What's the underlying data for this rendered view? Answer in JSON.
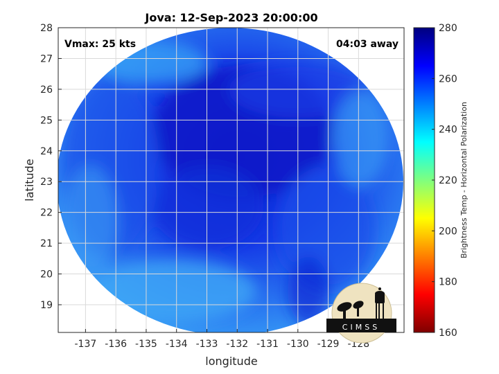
{
  "title": "Jova: 12-Sep-2023 20:00:00",
  "annotations": {
    "vmax": "Vmax: 25 kts",
    "away": "04:03 away"
  },
  "axes": {
    "xlabel": "longitude",
    "ylabel": "latitude",
    "x_ticks": [
      "-137",
      "-136",
      "-135",
      "-134",
      "-133",
      "-132",
      "-131",
      "-130",
      "-129",
      "-128"
    ],
    "y_ticks": [
      "19",
      "20",
      "21",
      "22",
      "23",
      "24",
      "25",
      "26",
      "27",
      "28"
    ],
    "xlim": [
      -137.9,
      -126.5
    ],
    "ylim": [
      18.1,
      28.0
    ],
    "grid": true
  },
  "colorbar": {
    "label": "Brightness Temp - Horizontal Polarization",
    "ticks": [
      "160",
      "180",
      "200",
      "220",
      "240",
      "260",
      "280"
    ],
    "range": [
      160,
      280
    ],
    "colormap": "jet"
  },
  "chart_data": {
    "type": "heatmap",
    "title": "Jova: 12-Sep-2023 20:00:00",
    "xlabel": "longitude",
    "ylabel": "latitude",
    "xlim": [
      -137.9,
      -126.5
    ],
    "ylim": [
      18.1,
      28.0
    ],
    "x_ticks": [
      -137,
      -136,
      -135,
      -134,
      -133,
      -132,
      -131,
      -130,
      -129,
      -128
    ],
    "y_ticks": [
      19,
      20,
      21,
      22,
      23,
      24,
      25,
      26,
      27,
      28
    ],
    "colorbar_range": [
      160,
      280
    ],
    "colorbar_label": "Brightness Temp - Horizontal Polarization",
    "value_range_shown": [
      240,
      270
    ],
    "swath_shape": "circular",
    "grid": true
  },
  "logo": {
    "text": "CIMSS",
    "icon": "cimss-logo-icon"
  },
  "colors": {
    "swath_cold": "#0a1fd0",
    "swath_mid": "#1a5cf0",
    "swath_warm": "#3fb0f6"
  }
}
